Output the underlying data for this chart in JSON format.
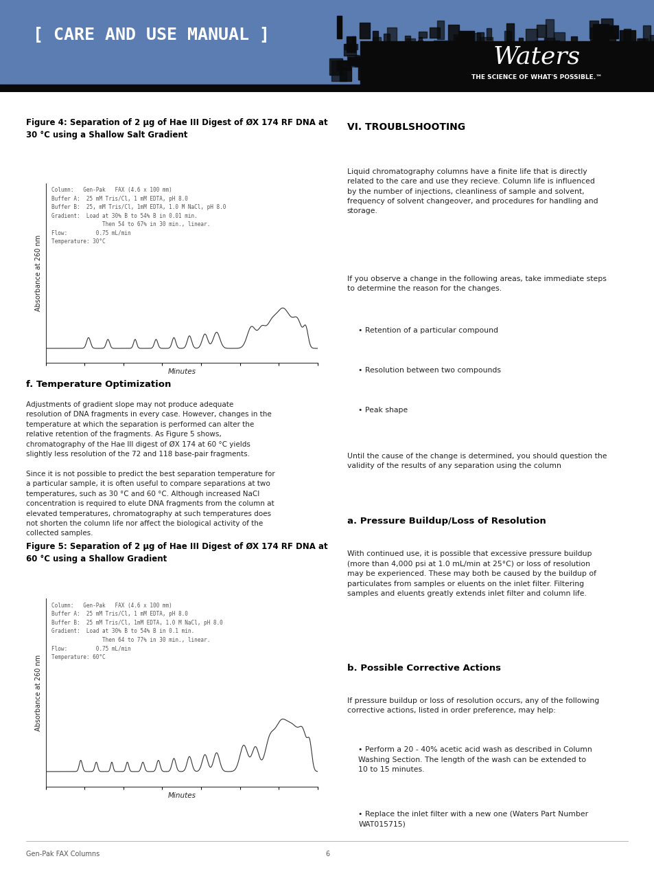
{
  "header_bg_color": "#5B7DB1",
  "header_text": "[ CARE AND USE MANUAL ]",
  "header_text_color": "#FFFFFF",
  "waters_text": "Waters",
  "waters_tagline": "THE SCIENCE OF WHAT'S POSSIBLE.™",
  "page_bg": "#FFFFFF",
  "fig4_title": "Figure 4: Separation of 2 μg of Hae III Digest of ØX 174 RF DNA at\n30 °C using a Shallow Salt Gradient",
  "fig4_ylabel": "Absorbance at 260 nm",
  "fig4_xlabel": "Minutes",
  "fig4_annotation": "Column:   Gen-Pak   FAX (4.6 x 100 mm)\nBuffer A:  25 mM Tris/Cl, 1 mM EDTA, pH 8.0\nBuffer B:  25, mM Tris/Cl, 1mM EDTA, 1.0 M NaCl, pH 8.0\nGradient:  Load at 30% B to 54% B in 0.01 min.\n                Then 54 to 67% in 30 min., linear.\nFlow:         0.75 mL/min\nTemperature: 30°C",
  "fig5_title": "Figure 5: Separation of 2 μg of Hae III Digest of ØX 174 RF DNA at\n60 °C using a Shallow Gradient",
  "fig5_ylabel": "Absorbance at 260 nm",
  "fig5_xlabel": "Minutes",
  "fig5_annotation": "Column:   Gen-Pak   FAX (4.6 x 100 mm)\nBuffer A:  25 mM Tris/Cl, 1 mM EDTA, pH 8.0\nBuffer B:  25 mM Tris/Cl, 1mM EDTA, 1.0 M NaCl, pH 8.0\nGradient:  Load at 30% B to 54% B in 0.1 min.\n                Then 64 to 77% in 30 min., linear.\nFlow:         0.75 mL/min\nTemperature: 60°C",
  "section_f_title": "f. Temperature Optimization",
  "section_f_body": "Adjustments of gradient slope may not produce adequate\nresolution of DNA fragments in every case. However, changes in the\ntemperature at which the separation is performed can alter the\nrelative retention of the fragments. As Figure 5 shows,\nchromatography of the Hae III digest of ØX 174 at 60 °C yields\nslightly less resolution of the 72 and 118 base-pair fragments.\n\nSince it is not possible to predict the best separation temperature for\na particular sample, it is often useful to compare separations at two\ntemperatures, such as 30 °C and 60 °C. Although increased NaCl\nconcentration is required to elute DNA fragments from the column at\nelevated temperatures, chromatography at such temperatures does\nnot shorten the column life nor affect the biological activity of the\ncollected samples.",
  "section_vi_title": "VI. TROUBLSHOOTING",
  "section_vi_body1": "Liquid chromatography columns have a finite life that is directly\nrelated to the care and use they recieve. Column life is influenced\nby the number of injections, cleanliness of sample and solvent,\nfrequency of solvent changeover, and procedures for handling and\nstorage.",
  "section_vi_body2": "If you observe a change in the following areas, take immediate steps\nto determine the reason for the changes.",
  "section_vi_bullets": [
    "Retention of a particular compound",
    "Resolution between two compounds",
    "Peak shape"
  ],
  "section_vi_body3": "Until the cause of the change is determined, you should question the\nvalidity of the results of any separation using the column",
  "section_a_title": "a. Pressure Buildup/Loss of Resolution",
  "section_a_body": "With continued use, it is possible that excessive pressure buildup\n(more than 4,000 psi at 1.0 mL/min at 25°C) or loss of resolution\nmay be experienced. These may both be caused by the buildup of\nparticulates from samples or eluents on the inlet filter. Filtering\nsamples and eluents greatly extends inlet filter and column life.",
  "section_b_title": "b. Possible Corrective Actions",
  "section_b_body": "If pressure buildup or loss of resolution occurs, any of the following\ncorrective actions, listed in order preference, may help:",
  "section_b_bullets": [
    "Perform a 20 - 40% acetic acid wash as described in Column\nWashing Section. The length of the wash can be extended to\n10 to 15 minutes.",
    "Replace the inlet filter with a new one (Waters Part Number\nWAT015715)"
  ],
  "footer_text": "Gen-Pak FAX Columns",
  "page_number": "6",
  "line_color": "#333333",
  "text_color": "#222222",
  "title_color": "#000000"
}
